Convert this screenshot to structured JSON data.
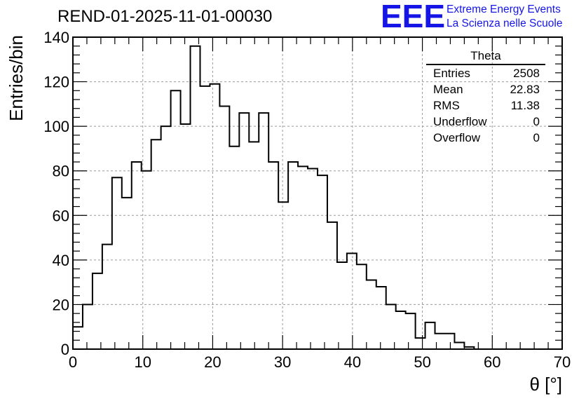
{
  "header": {
    "run_title": "REND-01-2025-11-01-00030",
    "logo_mark": "EEE",
    "logo_line1": "Extreme Energy Events",
    "logo_line2": "La Scienza nelle Scuole",
    "logo_color": "#1515e6"
  },
  "stats": {
    "title": "Theta",
    "rows": [
      {
        "label": "Entries",
        "value": "2508"
      },
      {
        "label": "Mean",
        "value": "22.83"
      },
      {
        "label": "RMS",
        "value": "11.38"
      },
      {
        "label": "Underflow",
        "value": "0"
      },
      {
        "label": "Overflow",
        "value": "0"
      }
    ]
  },
  "chart_data": {
    "type": "histogram",
    "title": "REND-01-2025-11-01-00030",
    "xlabel": "θ [°]",
    "ylabel": "Entries/bin",
    "xlim": [
      0,
      70
    ],
    "ylim": [
      0,
      140
    ],
    "bin_width": 1.4,
    "x_ticks": [
      0,
      10,
      20,
      30,
      40,
      50,
      60,
      70
    ],
    "y_ticks": [
      0,
      20,
      40,
      60,
      80,
      100,
      120,
      140
    ],
    "grid": true,
    "values": [
      10,
      20,
      34,
      47,
      77,
      68,
      84,
      80,
      94,
      100,
      116,
      101,
      136,
      118,
      119,
      109,
      91,
      106,
      93,
      106,
      84,
      66,
      84,
      82,
      81,
      78,
      57,
      39,
      43,
      38,
      31,
      28,
      20,
      17,
      16,
      5,
      12,
      7,
      7,
      3,
      1,
      0,
      0,
      0,
      0,
      0,
      0,
      0,
      0,
      0
    ]
  }
}
